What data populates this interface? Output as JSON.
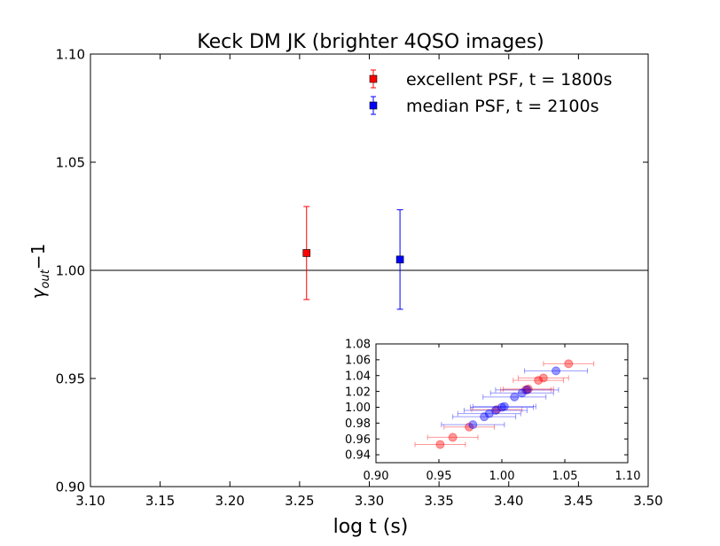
{
  "chart_data": [
    {
      "type": "scatter",
      "title": "Keck DM JK (brighter 4QSO images)",
      "xlabel": "log t (s)",
      "ylabel": "γ",
      "ylabel_sub": "out",
      "ylabel_suffix": "−1",
      "xlim": [
        3.1,
        3.5
      ],
      "ylim": [
        0.9,
        1.1
      ],
      "xticks": [
        "3.10",
        "3.15",
        "3.20",
        "3.25",
        "3.30",
        "3.35",
        "3.40",
        "3.45",
        "3.50"
      ],
      "yticks": [
        "0.90",
        "0.95",
        "1.00",
        "1.05",
        "1.10"
      ],
      "reference_line": 1.0,
      "grid": false,
      "legend_position": "top-right",
      "series": [
        {
          "name": "excellent PSF, t = 1800s",
          "color": "#ff0000",
          "marker": "square",
          "points": [
            {
              "x": 3.255,
              "y": 1.008,
              "yerr": 0.0215
            }
          ]
        },
        {
          "name": "median PSF, t = 2100s",
          "color": "#0000ff",
          "marker": "square",
          "points": [
            {
              "x": 3.322,
              "y": 1.005,
              "yerr": 0.023
            }
          ]
        }
      ]
    },
    {
      "type": "scatter",
      "role": "inset",
      "xlim": [
        0.9,
        1.1
      ],
      "ylim": [
        0.93,
        1.08
      ],
      "xticks": [
        "0.90",
        "0.95",
        "1.00",
        "1.05",
        "1.10"
      ],
      "yticks": [
        "0.94",
        "0.96",
        "0.98",
        "1.00",
        "1.02",
        "1.04",
        "1.06",
        "1.08"
      ],
      "grid": false,
      "series": [
        {
          "color": "#ff0000",
          "marker": "circle",
          "alpha": 0.4,
          "points": [
            {
              "x": 0.951,
              "y": 0.953,
              "xerr": 0.02
            },
            {
              "x": 0.961,
              "y": 0.962,
              "xerr": 0.02
            },
            {
              "x": 0.974,
              "y": 0.975,
              "xerr": 0.02
            },
            {
              "x": 0.996,
              "y": 0.997,
              "xerr": 0.02
            },
            {
              "x": 1.019,
              "y": 1.022,
              "xerr": 0.02
            },
            {
              "x": 1.021,
              "y": 1.023,
              "xerr": 0.02
            },
            {
              "x": 1.029,
              "y": 1.034,
              "xerr": 0.02
            },
            {
              "x": 1.033,
              "y": 1.037,
              "xerr": 0.02
            },
            {
              "x": 1.053,
              "y": 1.055,
              "xerr": 0.02
            }
          ]
        },
        {
          "color": "#0000ff",
          "marker": "circle",
          "alpha": 0.4,
          "points": [
            {
              "x": 0.977,
              "y": 0.978,
              "xerr": 0.025
            },
            {
              "x": 0.986,
              "y": 0.988,
              "xerr": 0.025
            },
            {
              "x": 0.99,
              "y": 0.992,
              "xerr": 0.025
            },
            {
              "x": 0.995,
              "y": 0.996,
              "xerr": 0.025
            },
            {
              "x": 1.0,
              "y": 1.0,
              "xerr": 0.025
            },
            {
              "x": 1.002,
              "y": 1.001,
              "xerr": 0.025
            },
            {
              "x": 1.01,
              "y": 1.013,
              "xerr": 0.025
            },
            {
              "x": 1.016,
              "y": 1.018,
              "xerr": 0.025
            },
            {
              "x": 1.02,
              "y": 1.022,
              "xerr": 0.025
            },
            {
              "x": 1.043,
              "y": 1.046,
              "xerr": 0.025
            }
          ]
        }
      ]
    }
  ]
}
